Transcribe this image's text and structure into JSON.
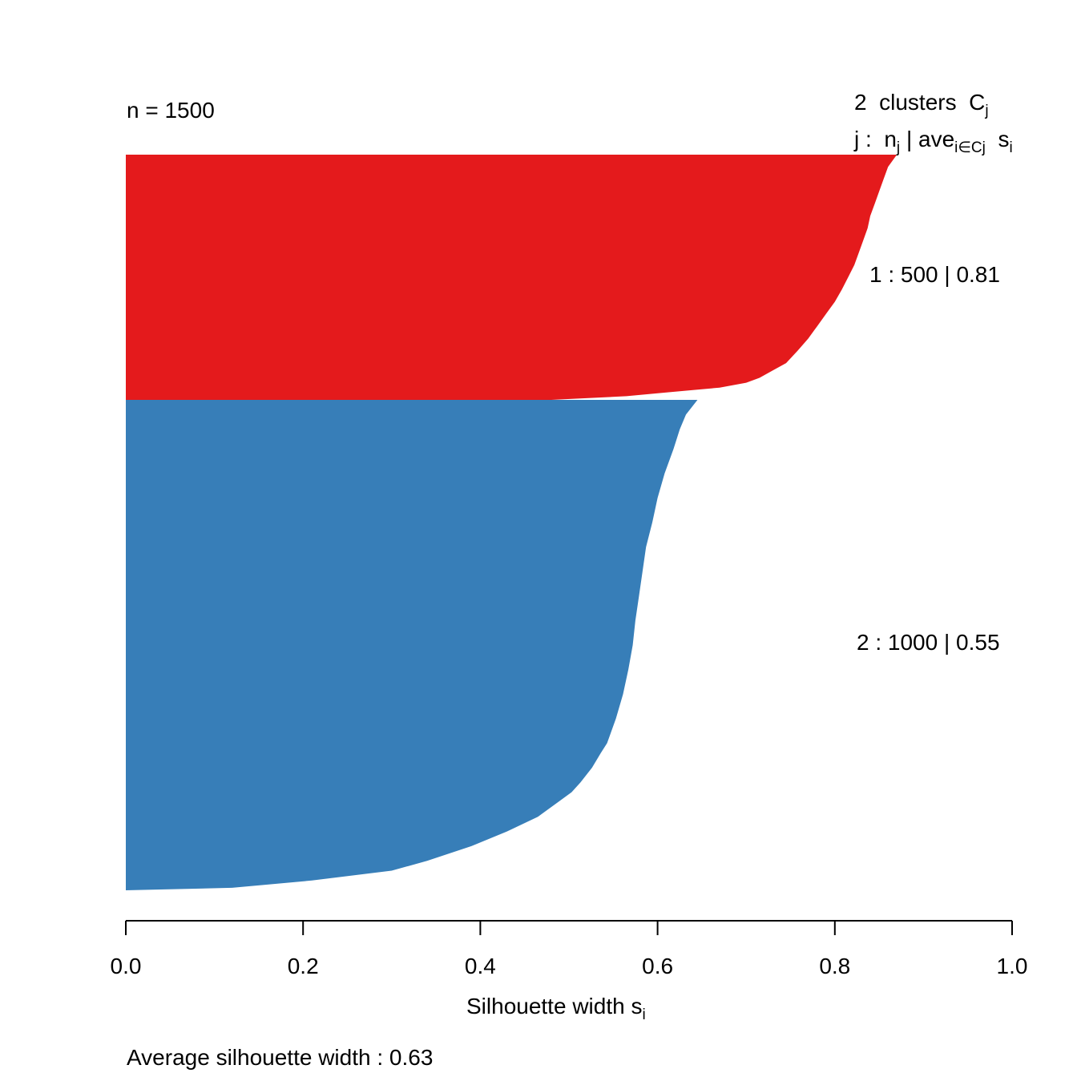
{
  "chart_data": {
    "type": "bar",
    "orientation": "horizontal",
    "n_label": "n = 1500",
    "header": {
      "clusters_count": "2",
      "clusters_word": "clusters",
      "cluster_symbol": "C",
      "cluster_symbol_sub": "j",
      "legend_j": "j :",
      "legend_n": "n",
      "legend_n_sub": "j",
      "legend_sep": "|",
      "legend_ave": "ave",
      "legend_ave_sub": "i∈Cj",
      "legend_s": "s",
      "legend_s_sub": "i"
    },
    "xlabel": "Silhouette width s",
    "xlabel_sub": "i",
    "xlim": [
      0.0,
      1.0
    ],
    "x_ticks": [
      0.0,
      0.2,
      0.4,
      0.6,
      0.8,
      1.0
    ],
    "x_tick_labels": [
      "0.0",
      "0.2",
      "0.4",
      "0.6",
      "0.8",
      "1.0"
    ],
    "clusters": [
      {
        "id": 1,
        "n": 500,
        "avg_width": 0.81,
        "label": "1 :   500  |  0.81",
        "color": "#e41a1c",
        "profile": [
          [
            0.0,
            0.87
          ],
          [
            0.05,
            0.86
          ],
          [
            0.1,
            0.855
          ],
          [
            0.15,
            0.85
          ],
          [
            0.2,
            0.845
          ],
          [
            0.25,
            0.84
          ],
          [
            0.3,
            0.837
          ],
          [
            0.35,
            0.832
          ],
          [
            0.4,
            0.827
          ],
          [
            0.45,
            0.822
          ],
          [
            0.5,
            0.815
          ],
          [
            0.55,
            0.808
          ],
          [
            0.6,
            0.8
          ],
          [
            0.65,
            0.79
          ],
          [
            0.7,
            0.78
          ],
          [
            0.75,
            0.77
          ],
          [
            0.8,
            0.758
          ],
          [
            0.85,
            0.745
          ],
          [
            0.88,
            0.73
          ],
          [
            0.91,
            0.715
          ],
          [
            0.93,
            0.7
          ],
          [
            0.95,
            0.67
          ],
          [
            0.96,
            0.64
          ],
          [
            0.97,
            0.61
          ],
          [
            0.985,
            0.565
          ],
          [
            1.0,
            0.48
          ]
        ]
      },
      {
        "id": 2,
        "n": 1000,
        "avg_width": 0.55,
        "label": "2 :   1000  |  0.55",
        "color": "#377eb8",
        "profile": [
          [
            0.0,
            0.645
          ],
          [
            0.03,
            0.632
          ],
          [
            0.06,
            0.625
          ],
          [
            0.1,
            0.618
          ],
          [
            0.15,
            0.608
          ],
          [
            0.2,
            0.6
          ],
          [
            0.25,
            0.594
          ],
          [
            0.3,
            0.587
          ],
          [
            0.35,
            0.583
          ],
          [
            0.4,
            0.579
          ],
          [
            0.45,
            0.575
          ],
          [
            0.5,
            0.572
          ],
          [
            0.55,
            0.567
          ],
          [
            0.6,
            0.561
          ],
          [
            0.65,
            0.553
          ],
          [
            0.7,
            0.543
          ],
          [
            0.72,
            0.536
          ],
          [
            0.75,
            0.526
          ],
          [
            0.78,
            0.513
          ],
          [
            0.8,
            0.503
          ],
          [
            0.82,
            0.488
          ],
          [
            0.85,
            0.465
          ],
          [
            0.88,
            0.43
          ],
          [
            0.91,
            0.39
          ],
          [
            0.94,
            0.34
          ],
          [
            0.96,
            0.3
          ],
          [
            0.98,
            0.21
          ],
          [
            0.995,
            0.12
          ],
          [
            1.0,
            0.0
          ]
        ]
      }
    ],
    "avg_label": "Average silhouette width :  0.63",
    "avg_width": 0.63
  }
}
